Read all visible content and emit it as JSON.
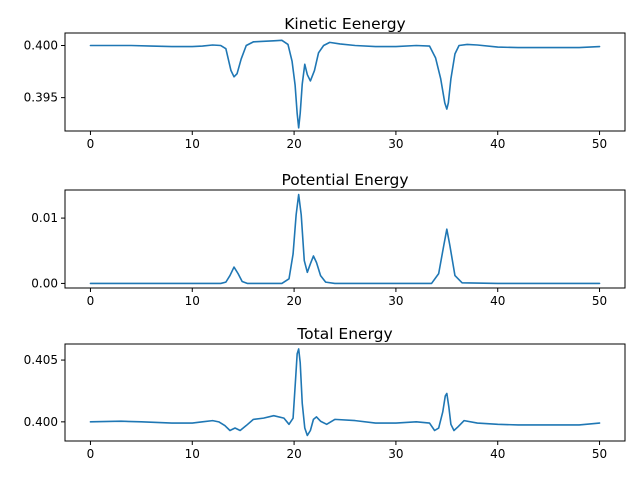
{
  "chart_data": [
    {
      "type": "line",
      "title": "Kinetic Eenergy",
      "xlabel": "",
      "ylabel": "",
      "xlim": [
        -2.5,
        52.5
      ],
      "ylim": [
        0.3918,
        0.4012
      ],
      "xticks": [
        0,
        10,
        20,
        30,
        40,
        50
      ],
      "xtick_labels": [
        "0",
        "10",
        "20",
        "30",
        "40",
        "50"
      ],
      "yticks": [
        0.395,
        0.4
      ],
      "ytick_labels": [
        "0.395",
        "0.400"
      ],
      "grid": false,
      "series": [
        {
          "color": "#1f77b4",
          "x": [
            0,
            2,
            4,
            6,
            8,
            10,
            11,
            12,
            12.8,
            13.3,
            13.8,
            14.1,
            14.4,
            14.8,
            15.3,
            16,
            17,
            18,
            18.8,
            19.4,
            19.8,
            20.1,
            20.3,
            20.45,
            20.6,
            20.8,
            21.05,
            21.3,
            21.6,
            22.0,
            22.4,
            22.9,
            23.5,
            24.5,
            26,
            28,
            30,
            32,
            33.3,
            33.9,
            34.4,
            34.8,
            35.0,
            35.15,
            35.4,
            35.8,
            36.2,
            37,
            38,
            40,
            42,
            45,
            48,
            50
          ],
          "y": [
            0.4,
            0.4,
            0.4,
            0.39995,
            0.3999,
            0.3999,
            0.39995,
            0.40005,
            0.4,
            0.3997,
            0.3976,
            0.397,
            0.3973,
            0.3987,
            0.4,
            0.40035,
            0.4004,
            0.40045,
            0.4005,
            0.4001,
            0.3985,
            0.3962,
            0.3935,
            0.3921,
            0.3935,
            0.3963,
            0.3982,
            0.3972,
            0.3966,
            0.3976,
            0.3993,
            0.4,
            0.4003,
            0.40015,
            0.4,
            0.3999,
            0.3999,
            0.4,
            0.39995,
            0.3988,
            0.3968,
            0.3945,
            0.3939,
            0.3945,
            0.3968,
            0.3992,
            0.4,
            0.4001,
            0.40005,
            0.39985,
            0.3998,
            0.3998,
            0.3998,
            0.3999
          ]
        }
      ]
    },
    {
      "type": "line",
      "title": "Potential Energy",
      "xlabel": "",
      "ylabel": "",
      "xlim": [
        -2.5,
        52.5
      ],
      "ylim": [
        -0.0007,
        0.0143
      ],
      "xticks": [
        0,
        10,
        20,
        30,
        40,
        50
      ],
      "xtick_labels": [
        "0",
        "10",
        "20",
        "30",
        "40",
        "50"
      ],
      "yticks": [
        0.0,
        0.01
      ],
      "ytick_labels": [
        "0.00",
        "0.01"
      ],
      "grid": false,
      "series": [
        {
          "color": "#1f77b4",
          "x": [
            0,
            10,
            12.8,
            13.3,
            13.7,
            14.1,
            14.5,
            14.9,
            15.4,
            18.8,
            19.5,
            19.9,
            20.2,
            20.45,
            20.7,
            21.0,
            21.3,
            21.6,
            21.9,
            22.2,
            22.6,
            23.1,
            24,
            33.5,
            34.2,
            34.7,
            35.0,
            35.3,
            35.8,
            36.5,
            40,
            50
          ],
          "y": [
            0,
            0,
            0,
            0.0002,
            0.0012,
            0.0025,
            0.0015,
            0.0003,
            0,
            0,
            0.0007,
            0.0045,
            0.0105,
            0.0136,
            0.0105,
            0.0035,
            0.0017,
            0.003,
            0.0042,
            0.0032,
            0.0012,
            0.0002,
            0,
            0,
            0.0015,
            0.0058,
            0.0083,
            0.0058,
            0.0012,
            0.0001,
            0,
            0
          ]
        }
      ]
    },
    {
      "type": "line",
      "title": "Total Energy",
      "xlabel": "",
      "ylabel": "",
      "xlim": [
        -2.5,
        52.5
      ],
      "ylim": [
        0.39845,
        0.4063
      ],
      "xticks": [
        0,
        10,
        20,
        30,
        40,
        50
      ],
      "xtick_labels": [
        "0",
        "10",
        "20",
        "30",
        "40",
        "50"
      ],
      "yticks": [
        0.4,
        0.405
      ],
      "ytick_labels": [
        "0.400",
        "0.405"
      ],
      "grid": false,
      "series": [
        {
          "color": "#1f77b4",
          "x": [
            0,
            3,
            5,
            8,
            10,
            11,
            12,
            12.6,
            13.2,
            13.7,
            14.2,
            14.7,
            15.3,
            16,
            17,
            18,
            19,
            19.5,
            19.9,
            20.15,
            20.3,
            20.45,
            20.6,
            20.8,
            21.05,
            21.3,
            21.6,
            21.9,
            22.2,
            22.6,
            23.2,
            24,
            26,
            28,
            30,
            32,
            33.3,
            33.8,
            34.2,
            34.6,
            34.85,
            35.0,
            35.2,
            35.4,
            35.7,
            36.1,
            36.7,
            38,
            40,
            42,
            45,
            48,
            50
          ],
          "y": [
            0.4,
            0.40005,
            0.4,
            0.3999,
            0.3999,
            0.4,
            0.4001,
            0.4,
            0.3997,
            0.3993,
            0.3995,
            0.3993,
            0.3997,
            0.4002,
            0.4003,
            0.4005,
            0.4003,
            0.3998,
            0.4003,
            0.4035,
            0.4055,
            0.4059,
            0.4048,
            0.4015,
            0.3995,
            0.3989,
            0.3993,
            0.4002,
            0.4004,
            0.40005,
            0.3998,
            0.4002,
            0.4001,
            0.3999,
            0.3999,
            0.4,
            0.3999,
            0.3993,
            0.3995,
            0.4008,
            0.4021,
            0.4023,
            0.4012,
            0.3998,
            0.3993,
            0.3996,
            0.4001,
            0.3999,
            0.3998,
            0.39975,
            0.39975,
            0.39975,
            0.3999
          ]
        }
      ]
    }
  ]
}
